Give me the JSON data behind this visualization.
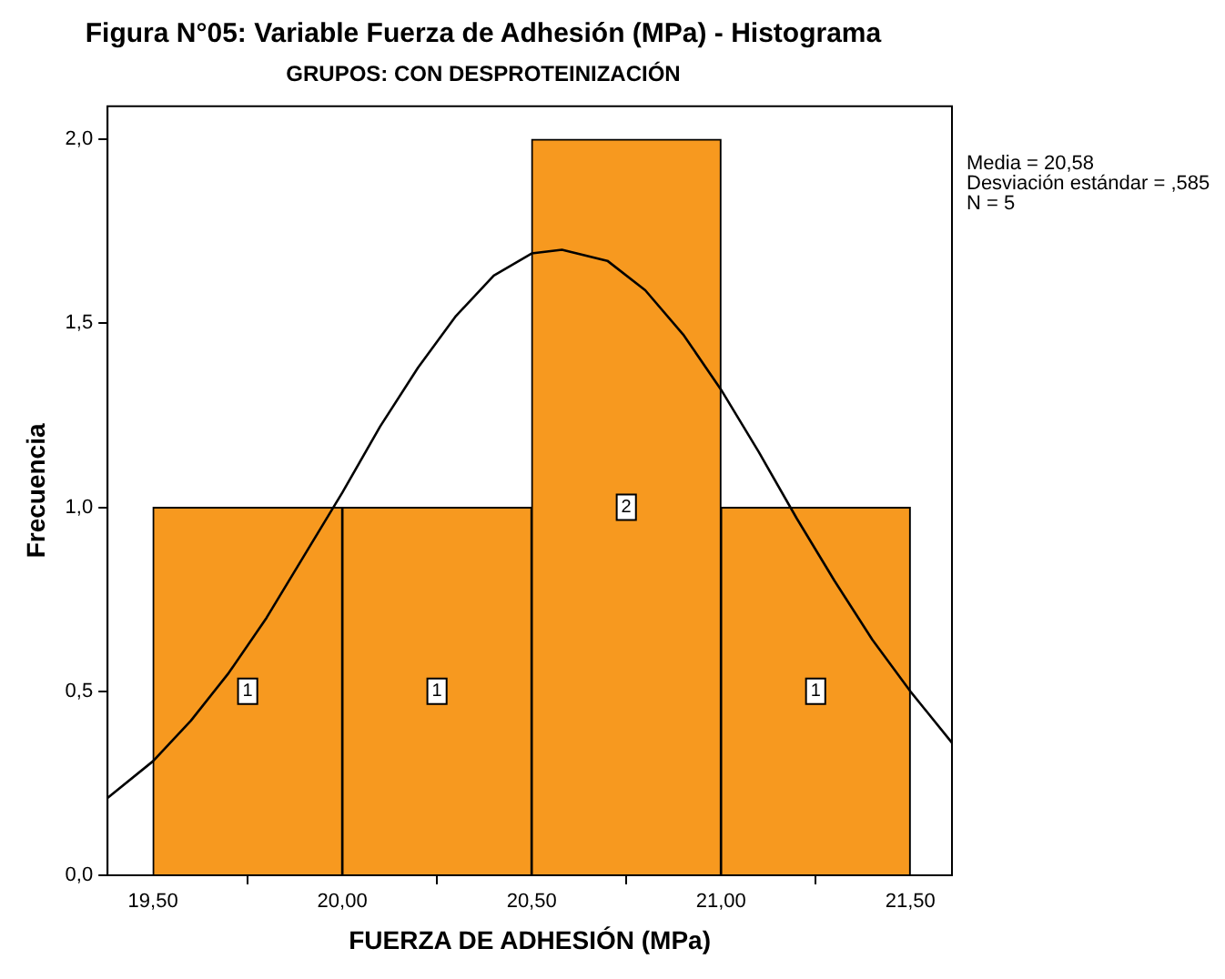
{
  "chart_data": {
    "type": "histogram",
    "title": "Figura N°05: Variable Fuerza de Adhesión (MPa) - Histograma",
    "subtitle": "GRUPOS: CON DESPROTEINIZACIÓN",
    "xlabel": "FUERZA DE ADHESIÓN (MPa)",
    "ylabel": "Frecuencia",
    "annotations": [
      "Media = 20,58",
      "Desviación estándar = ,585",
      "N = 5"
    ],
    "bins": [
      19.5,
      20.0,
      20.5,
      21.0,
      21.5
    ],
    "series": [
      {
        "color": "#f7991f",
        "values": [
          1,
          1,
          2,
          1
        ],
        "value_labels": [
          "1",
          "1",
          "2",
          "1"
        ]
      },
      {
        "type": "line",
        "color": "#000000",
        "x": [
          19.38,
          19.5,
          19.6,
          19.7,
          19.8,
          19.9,
          20.0,
          20.1,
          20.2,
          20.3,
          20.4,
          20.5,
          20.58,
          20.7,
          20.8,
          20.9,
          21.0,
          21.1,
          21.2,
          21.3,
          21.4,
          21.5,
          21.61
        ],
        "values": [
          0.21,
          0.31,
          0.42,
          0.55,
          0.7,
          0.87,
          1.04,
          1.22,
          1.38,
          1.52,
          1.63,
          1.69,
          1.7,
          1.67,
          1.59,
          1.47,
          1.32,
          1.15,
          0.97,
          0.8,
          0.64,
          0.5,
          0.36
        ]
      }
    ],
    "xlim": [
      19.38,
      21.61
    ],
    "xticks": [
      {
        "value": 19.5,
        "label": "19,50"
      },
      {
        "value": 20.0,
        "label": "20,00"
      },
      {
        "value": 20.5,
        "label": "20,50"
      },
      {
        "value": 21.0,
        "label": "21,00"
      },
      {
        "value": 21.5,
        "label": "21,50"
      }
    ],
    "ylim": [
      0,
      2.09
    ],
    "yticks": [
      {
        "value": 0,
        "label": "0,0"
      },
      {
        "value": 0.5,
        "label": "0,5"
      },
      {
        "value": 1.0,
        "label": "1,0"
      },
      {
        "value": 1.5,
        "label": "1,5"
      },
      {
        "value": 2.0,
        "label": "2,0"
      }
    ],
    "legend": false,
    "grid": false,
    "line_style": "solid",
    "marker": "none"
  }
}
